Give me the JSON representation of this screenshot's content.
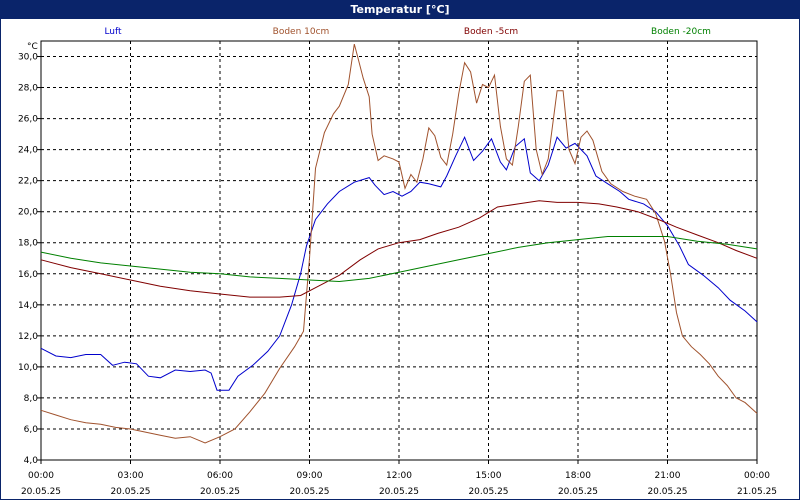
{
  "window": {
    "title": "Temperatur [°C]"
  },
  "chart_data": {
    "type": "line",
    "title": "Temperatur [°C]",
    "ylabel": "°C",
    "xlabel": "",
    "ylim": [
      4,
      31
    ],
    "yticks": [
      "4,0",
      "6,0",
      "8,0",
      "10,0",
      "12,0",
      "14,0",
      "16,0",
      "18,0",
      "20,0",
      "22,0",
      "24,0",
      "26,0",
      "28,0",
      "30,0"
    ],
    "ytick_values": [
      4,
      6,
      8,
      10,
      12,
      14,
      16,
      18,
      20,
      22,
      24,
      26,
      28,
      30
    ],
    "xlim": [
      0,
      24
    ],
    "xticks": [
      {
        "t": 0,
        "time": "00:00",
        "date": "20.05.25"
      },
      {
        "t": 3,
        "time": "03:00",
        "date": "20.05.25"
      },
      {
        "t": 6,
        "time": "06:00",
        "date": "20.05.25"
      },
      {
        "t": 9,
        "time": "09:00",
        "date": "20.05.25"
      },
      {
        "t": 12,
        "time": "12:00",
        "date": "20.05.25"
      },
      {
        "t": 15,
        "time": "15:00",
        "date": "20.05.25"
      },
      {
        "t": 18,
        "time": "18:00",
        "date": "20.05.25"
      },
      {
        "t": 21,
        "time": "21:00",
        "date": "20.05.25"
      },
      {
        "t": 24,
        "time": "00:00",
        "date": "21.05.25"
      }
    ],
    "grid": true,
    "legend_position": "top",
    "series": [
      {
        "name": "Luft",
        "color": "#0000cc",
        "points": [
          [
            0,
            11.2
          ],
          [
            0.5,
            10.7
          ],
          [
            1,
            10.6
          ],
          [
            1.5,
            10.8
          ],
          [
            2,
            10.8
          ],
          [
            2.4,
            10.1
          ],
          [
            2.8,
            10.3
          ],
          [
            3.2,
            10.2
          ],
          [
            3.6,
            9.4
          ],
          [
            4,
            9.3
          ],
          [
            4.5,
            9.8
          ],
          [
            5,
            9.7
          ],
          [
            5.5,
            9.8
          ],
          [
            5.7,
            9.6
          ],
          [
            5.9,
            8.5
          ],
          [
            6.3,
            8.5
          ],
          [
            6.6,
            9.4
          ],
          [
            7.1,
            10.1
          ],
          [
            7.6,
            11
          ],
          [
            8,
            12
          ],
          [
            8.4,
            14
          ],
          [
            8.7,
            16
          ],
          [
            8.9,
            17.8
          ],
          [
            9.2,
            19.5
          ],
          [
            9.6,
            20.5
          ],
          [
            10,
            21.3
          ],
          [
            10.5,
            21.9
          ],
          [
            11,
            22.2
          ],
          [
            11.2,
            21.7
          ],
          [
            11.5,
            21.1
          ],
          [
            11.8,
            21.3
          ],
          [
            12.1,
            21
          ],
          [
            12.4,
            21.3
          ],
          [
            12.7,
            21.9
          ],
          [
            13,
            21.8
          ],
          [
            13.4,
            21.6
          ],
          [
            13.6,
            22.3
          ],
          [
            13.9,
            23.6
          ],
          [
            14.2,
            24.8
          ],
          [
            14.5,
            23.3
          ],
          [
            14.8,
            23.9
          ],
          [
            15.1,
            24.7
          ],
          [
            15.4,
            23.2
          ],
          [
            15.6,
            22.7
          ],
          [
            15.9,
            24.2
          ],
          [
            16.2,
            24.7
          ],
          [
            16.4,
            22.5
          ],
          [
            16.7,
            22.0
          ],
          [
            17,
            23.0
          ],
          [
            17.3,
            24.8
          ],
          [
            17.6,
            24.1
          ],
          [
            17.9,
            24.4
          ],
          [
            18.3,
            23.6
          ],
          [
            18.6,
            22.3
          ],
          [
            19,
            21.8
          ],
          [
            19.4,
            21.3
          ],
          [
            19.7,
            20.8
          ],
          [
            20.2,
            20.5
          ],
          [
            20.6,
            20.0
          ],
          [
            21,
            19.1
          ],
          [
            21.4,
            17.8
          ],
          [
            21.7,
            16.6
          ],
          [
            22.2,
            15.9
          ],
          [
            22.7,
            15.1
          ],
          [
            23.1,
            14.3
          ],
          [
            23.6,
            13.6
          ],
          [
            24,
            12.9
          ]
        ]
      },
      {
        "name": "Boden 10cm",
        "color": "#a0522d",
        "points": [
          [
            0,
            7.2
          ],
          [
            0.5,
            6.9
          ],
          [
            1,
            6.6
          ],
          [
            1.5,
            6.4
          ],
          [
            2,
            6.3
          ],
          [
            2.5,
            6.1
          ],
          [
            3,
            6.0
          ],
          [
            3.5,
            5.8
          ],
          [
            4,
            5.6
          ],
          [
            4.5,
            5.4
          ],
          [
            5,
            5.5
          ],
          [
            5.5,
            5.1
          ],
          [
            6,
            5.5
          ],
          [
            6.5,
            6.0
          ],
          [
            7,
            7.1
          ],
          [
            7.5,
            8.3
          ],
          [
            8,
            9.9
          ],
          [
            8.5,
            11.3
          ],
          [
            8.8,
            12.3
          ],
          [
            9,
            17
          ],
          [
            9.2,
            22.8
          ],
          [
            9.5,
            25.1
          ],
          [
            9.8,
            26.3
          ],
          [
            10,
            26.8
          ],
          [
            10.3,
            28.2
          ],
          [
            10.5,
            30.8
          ],
          [
            10.6,
            30.1
          ],
          [
            10.8,
            28.6
          ],
          [
            11,
            27.4
          ],
          [
            11.1,
            25.0
          ],
          [
            11.3,
            23.3
          ],
          [
            11.5,
            23.6
          ],
          [
            11.8,
            23.4
          ],
          [
            12,
            23.2
          ],
          [
            12.2,
            21.5
          ],
          [
            12.4,
            22.4
          ],
          [
            12.6,
            21.9
          ],
          [
            12.8,
            23.4
          ],
          [
            13,
            25.4
          ],
          [
            13.2,
            24.9
          ],
          [
            13.4,
            23.5
          ],
          [
            13.6,
            23.0
          ],
          [
            13.8,
            25.0
          ],
          [
            14,
            27.6
          ],
          [
            14.2,
            29.6
          ],
          [
            14.4,
            29.0
          ],
          [
            14.6,
            27.0
          ],
          [
            14.8,
            28.2
          ],
          [
            15,
            28.0
          ],
          [
            15.2,
            28.8
          ],
          [
            15.4,
            25.5
          ],
          [
            15.6,
            23.4
          ],
          [
            15.8,
            23.0
          ],
          [
            16,
            25.5
          ],
          [
            16.2,
            28.4
          ],
          [
            16.4,
            28.8
          ],
          [
            16.6,
            24.0
          ],
          [
            16.8,
            22.4
          ],
          [
            17,
            23.4
          ],
          [
            17.3,
            27.8
          ],
          [
            17.5,
            27.8
          ],
          [
            17.7,
            24.0
          ],
          [
            17.9,
            23.1
          ],
          [
            18.1,
            24.8
          ],
          [
            18.3,
            25.2
          ],
          [
            18.5,
            24.6
          ],
          [
            18.8,
            22.6
          ],
          [
            19.1,
            21.8
          ],
          [
            19.5,
            21.3
          ],
          [
            19.9,
            21.0
          ],
          [
            20.3,
            20.8
          ],
          [
            20.6,
            19.9
          ],
          [
            20.9,
            18.1
          ],
          [
            21.1,
            16.0
          ],
          [
            21.3,
            13.5
          ],
          [
            21.5,
            12.0
          ],
          [
            21.8,
            11.3
          ],
          [
            22.1,
            10.8
          ],
          [
            22.4,
            10.2
          ],
          [
            22.7,
            9.4
          ],
          [
            23,
            8.8
          ],
          [
            23.3,
            8.0
          ],
          [
            23.6,
            7.7
          ],
          [
            24,
            7.0
          ]
        ]
      },
      {
        "name": "Boden -5cm",
        "color": "#800000",
        "points": [
          [
            0,
            16.9
          ],
          [
            1,
            16.4
          ],
          [
            2,
            16.0
          ],
          [
            3,
            15.6
          ],
          [
            4,
            15.2
          ],
          [
            5,
            14.9
          ],
          [
            6,
            14.7
          ],
          [
            7,
            14.5
          ],
          [
            8,
            14.5
          ],
          [
            8.7,
            14.6
          ],
          [
            9.3,
            15.2
          ],
          [
            10,
            15.9
          ],
          [
            10.7,
            16.9
          ],
          [
            11.3,
            17.6
          ],
          [
            12,
            18.0
          ],
          [
            12.7,
            18.2
          ],
          [
            13.3,
            18.6
          ],
          [
            14,
            19.0
          ],
          [
            14.7,
            19.6
          ],
          [
            15.3,
            20.3
          ],
          [
            16,
            20.5
          ],
          [
            16.7,
            20.7
          ],
          [
            17.3,
            20.6
          ],
          [
            18,
            20.6
          ],
          [
            18.7,
            20.5
          ],
          [
            19.3,
            20.3
          ],
          [
            20,
            20.0
          ],
          [
            20.7,
            19.5
          ],
          [
            21.3,
            19.0
          ],
          [
            22,
            18.5
          ],
          [
            22.7,
            18.0
          ],
          [
            23.3,
            17.5
          ],
          [
            24,
            17.0
          ]
        ]
      },
      {
        "name": "Boden -20cm",
        "color": "#008000",
        "points": [
          [
            0,
            17.4
          ],
          [
            1,
            17.0
          ],
          [
            2,
            16.7
          ],
          [
            3,
            16.5
          ],
          [
            4,
            16.3
          ],
          [
            5,
            16.1
          ],
          [
            6,
            16.0
          ],
          [
            7,
            15.8
          ],
          [
            8,
            15.7
          ],
          [
            9,
            15.6
          ],
          [
            10,
            15.5
          ],
          [
            11,
            15.7
          ],
          [
            12,
            16.1
          ],
          [
            13,
            16.5
          ],
          [
            14,
            16.9
          ],
          [
            15,
            17.3
          ],
          [
            16,
            17.7
          ],
          [
            17,
            18.0
          ],
          [
            18,
            18.2
          ],
          [
            19,
            18.4
          ],
          [
            20,
            18.4
          ],
          [
            21,
            18.4
          ],
          [
            22,
            18.1
          ],
          [
            23,
            17.9
          ],
          [
            24,
            17.6
          ]
        ]
      }
    ]
  }
}
